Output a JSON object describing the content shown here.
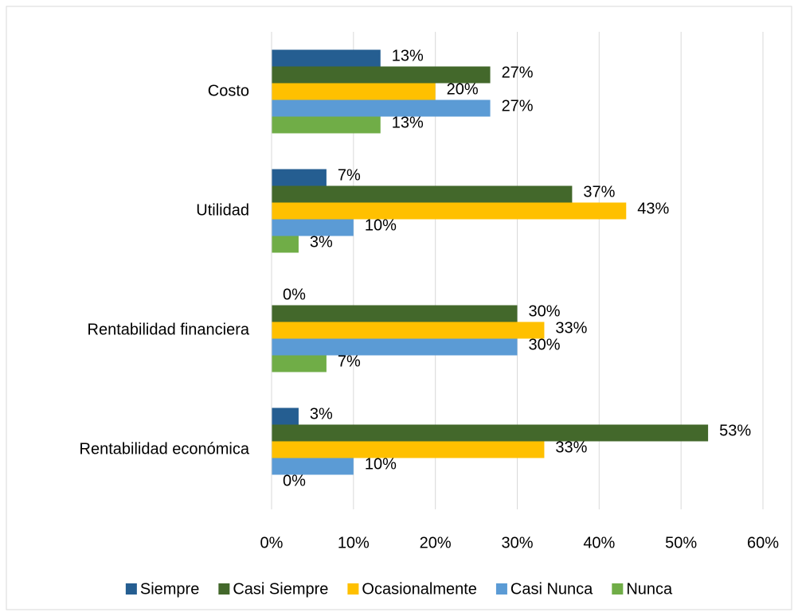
{
  "chart_data": {
    "type": "hbar",
    "categories": [
      "Costo",
      "Utilidad",
      "Rentabilidad financiera",
      "Rentabilidad económica"
    ],
    "series": [
      {
        "name": "Siempre",
        "color": "#255e91",
        "values": [
          13.3,
          6.7,
          0,
          3.3
        ],
        "value_labels": [
          "13%",
          "7%",
          "0%",
          "3%"
        ]
      },
      {
        "name": "Casi Siempre",
        "color": "#43682b",
        "values": [
          26.7,
          36.7,
          30,
          53.3
        ],
        "value_labels": [
          "27%",
          "37%",
          "30%",
          "53%"
        ]
      },
      {
        "name": "Ocasionalmente",
        "color": "#ffc000",
        "values": [
          20,
          43.3,
          33.3,
          33.3
        ],
        "value_labels": [
          "20%",
          "43%",
          "33%",
          "33%"
        ]
      },
      {
        "name": "Casi Nunca",
        "color": "#5b9bd5",
        "values": [
          26.7,
          10,
          30,
          10
        ],
        "value_labels": [
          "27%",
          "10%",
          "30%",
          "10%"
        ]
      },
      {
        "name": "Nunca",
        "color": "#70ad47",
        "values": [
          13.3,
          3.3,
          6.7,
          0
        ],
        "value_labels": [
          "13%",
          "3%",
          "7%",
          "0%"
        ]
      }
    ],
    "xlim": [
      0,
      60
    ],
    "xticks": [
      {
        "value": 0,
        "label": "0%"
      },
      {
        "value": 10,
        "label": "10%"
      },
      {
        "value": 20,
        "label": "20%"
      },
      {
        "value": 30,
        "label": "30%"
      },
      {
        "value": 40,
        "label": "40%"
      },
      {
        "value": 50,
        "label": "50%"
      },
      {
        "value": 60,
        "label": "60%"
      }
    ],
    "grid": true,
    "legend": "bottom"
  }
}
